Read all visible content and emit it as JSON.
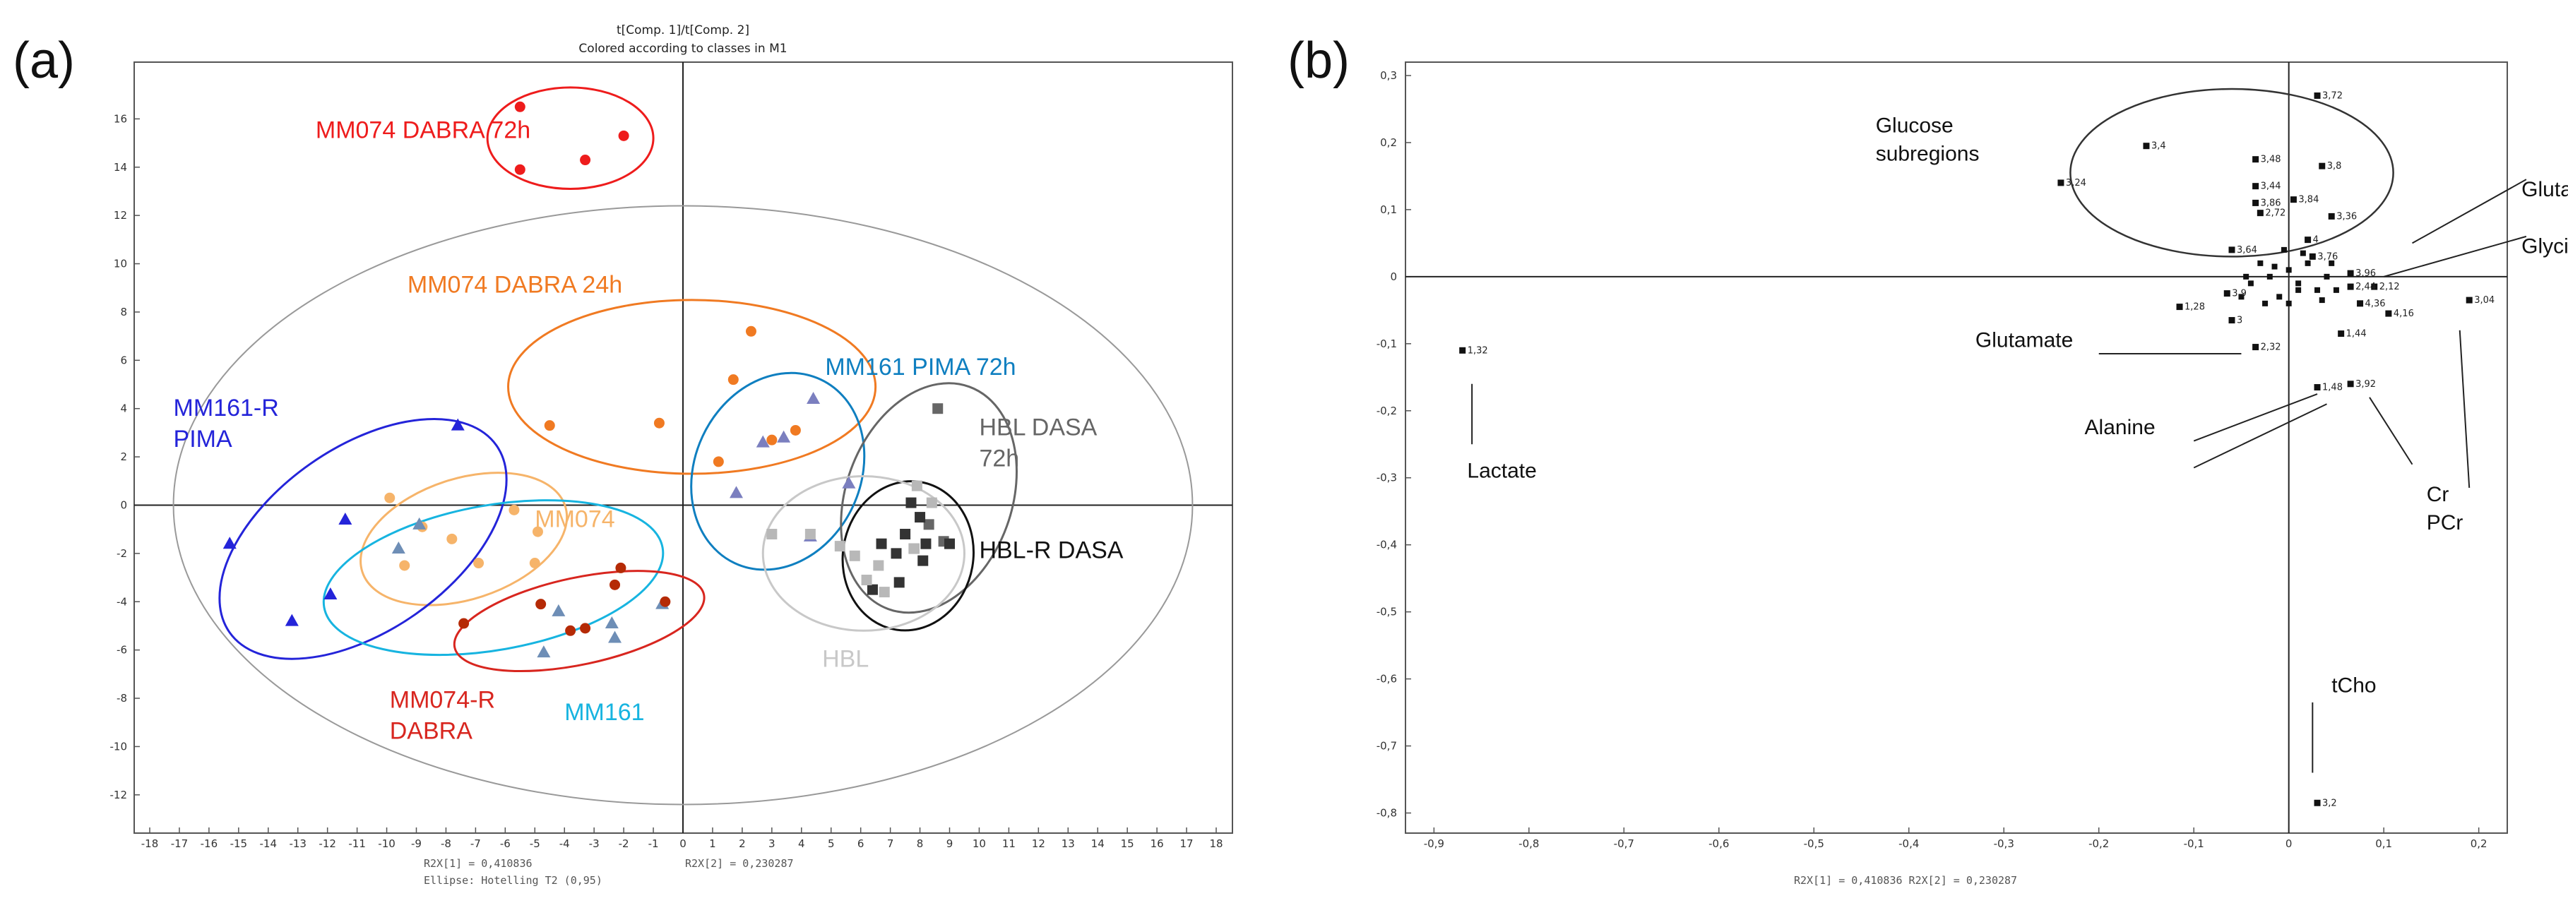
{
  "panels": {
    "a_label": "(a)",
    "b_label": "(b)"
  },
  "chart_data": [
    {
      "type": "scatter",
      "panel": "(a)",
      "title": "t[Comp. 1]/t[Comp. 2]",
      "subtitle": "Colored according to classes in M1",
      "xlim": [
        -18,
        18
      ],
      "ylim": [
        -13,
        18
      ],
      "xticks": [
        -18,
        -17,
        -16,
        -15,
        -14,
        -13,
        -12,
        -11,
        -10,
        -9,
        -8,
        -7,
        -6,
        -5,
        -4,
        -3,
        -2,
        -1,
        0,
        1,
        2,
        3,
        4,
        5,
        6,
        7,
        8,
        9,
        10,
        11,
        12,
        13,
        14,
        15,
        16,
        17,
        18
      ],
      "yticks": [
        -12,
        -10,
        -8,
        -6,
        -4,
        -2,
        0,
        2,
        4,
        6,
        8,
        10,
        12,
        14,
        16
      ],
      "footer_x": "R2X[1] = 0,410836",
      "footer_y": "R2X[2] = 0,230287",
      "footer_ellipse": "Ellipse: Hotelling T2 (0,95)",
      "hotelling": {
        "cx": 0,
        "cy": 0,
        "rx": 17.2,
        "ry": 12.4,
        "color": "#999999"
      },
      "groups": [
        {
          "name": "MM074 DABRA 72h",
          "label": "MM074 DABRA 72h",
          "color": "#ee1c1c",
          "marker": "circle",
          "ellipse": {
            "cx": -3.8,
            "cy": 15.2,
            "rx": 2.8,
            "ry": 2.1,
            "rot": 0
          },
          "label_at": [
            -12.4,
            15.2
          ],
          "points": [
            [
              -5.5,
              16.5
            ],
            [
              -2.0,
              15.3
            ],
            [
              -3.3,
              14.3
            ],
            [
              -5.5,
              13.9
            ]
          ]
        },
        {
          "name": "MM074 DABRA 24h",
          "label": "MM074 DABRA 24h",
          "color": "#f07a22",
          "marker": "circle",
          "ellipse": {
            "cx": 0.3,
            "cy": 4.9,
            "rx": 6.2,
            "ry": 3.6,
            "rot": 0
          },
          "label_at": [
            -9.3,
            8.8
          ],
          "points": [
            [
              -4.5,
              3.3
            ],
            [
              -0.8,
              3.4
            ],
            [
              1.2,
              1.8
            ],
            [
              2.3,
              7.2
            ],
            [
              3.8,
              3.1
            ],
            [
              1.7,
              5.2
            ],
            [
              3.0,
              2.7
            ]
          ]
        },
        {
          "name": "MM161 PIMA 72h",
          "label": "MM161 PIMA 72h",
          "color": "#0f7fc0",
          "marker": "triangle",
          "ellipse": {
            "cx": 3.2,
            "cy": 1.4,
            "rx": 2.8,
            "ry": 4.2,
            "rot": 25
          },
          "label_at": [
            4.8,
            5.4
          ],
          "points": [
            [
              1.8,
              0.5
            ],
            [
              2.7,
              2.6
            ],
            [
              3.4,
              2.8
            ],
            [
              4.4,
              4.4
            ],
            [
              4.3,
              -1.3
            ],
            [
              5.6,
              0.9
            ]
          ],
          "point_color": "#7b7fbf"
        },
        {
          "name": "HBL DASA 72h",
          "label": "HBL DASA",
          "label2": "72h",
          "color": "#666666",
          "marker": "square",
          "ellipse": {
            "cx": 8.3,
            "cy": 0.3,
            "rx": 2.8,
            "ry": 4.9,
            "rot": 20
          },
          "label_at": [
            10.0,
            2.9
          ],
          "points": [
            [
              8.6,
              4.0
            ],
            [
              8.8,
              -1.5
            ],
            [
              8.3,
              -0.8
            ]
          ]
        },
        {
          "name": "HBL-R DASA",
          "label": "HBL-R DASA",
          "color": "#111111",
          "marker": "square",
          "ellipse": {
            "cx": 7.6,
            "cy": -2.1,
            "rx": 2.2,
            "ry": 3.1,
            "rot": 10
          },
          "label_at": [
            10.0,
            -2.2
          ],
          "points": [
            [
              6.7,
              -1.6
            ],
            [
              7.2,
              -2.0
            ],
            [
              7.5,
              -1.2
            ],
            [
              7.8,
              -1.8
            ],
            [
              8.2,
              -1.6
            ],
            [
              8.0,
              -0.5
            ],
            [
              7.3,
              -3.2
            ],
            [
              6.4,
              -3.5
            ],
            [
              7.7,
              0.1
            ],
            [
              8.1,
              -2.3
            ],
            [
              9.0,
              -1.6
            ]
          ],
          "point_color": "#333333"
        },
        {
          "name": "HBL",
          "label": "HBL",
          "color": "#c8c8c8",
          "marker": "square",
          "ellipse": {
            "cx": 6.1,
            "cy": -2.0,
            "rx": 3.4,
            "ry": 3.2,
            "rot": 0
          },
          "label_at": [
            4.7,
            -6.7
          ],
          "points": [
            [
              3.0,
              -1.2
            ],
            [
              4.3,
              -1.2
            ],
            [
              5.3,
              -1.7
            ],
            [
              5.8,
              -2.1
            ],
            [
              6.6,
              -2.5
            ],
            [
              7.8,
              -1.8
            ],
            [
              8.4,
              0.1
            ],
            [
              6.8,
              -3.6
            ],
            [
              7.9,
              0.8
            ],
            [
              6.2,
              -3.1
            ]
          ],
          "point_color": "#b8b8b8"
        },
        {
          "name": "MM074",
          "label": "MM074",
          "color": "#f6b46a",
          "marker": "circle",
          "ellipse": {
            "cx": -7.4,
            "cy": -1.4,
            "rx": 3.6,
            "ry": 2.5,
            "rot": -18
          },
          "label_at": [
            -5.0,
            -0.9
          ],
          "points": [
            [
              -9.9,
              0.3
            ],
            [
              -8.8,
              -0.9
            ],
            [
              -7.8,
              -1.4
            ],
            [
              -5.7,
              -0.2
            ],
            [
              -4.9,
              -1.1
            ],
            [
              -6.9,
              -2.4
            ],
            [
              -5.0,
              -2.4
            ],
            [
              -9.4,
              -2.5
            ]
          ]
        },
        {
          "name": "MM161-R PIMA",
          "label": "MM161-R",
          "label2": "PIMA",
          "color": "#2424d9",
          "marker": "triangle",
          "ellipse": {
            "cx": -10.8,
            "cy": -1.4,
            "rx": 5.5,
            "ry": 3.8,
            "rot": -35
          },
          "label_at": [
            -17.2,
            3.7
          ],
          "points": [
            [
              -15.3,
              -1.6
            ],
            [
              -13.2,
              -4.8
            ],
            [
              -11.9,
              -3.7
            ],
            [
              -11.4,
              -0.6
            ],
            [
              -7.6,
              3.3
            ]
          ]
        },
        {
          "name": "MM161",
          "label": "MM161",
          "color": "#17b4e0",
          "marker": "triangle",
          "ellipse": {
            "cx": -6.4,
            "cy": -3.0,
            "rx": 5.8,
            "ry": 3.0,
            "rot": -10
          },
          "label_at": [
            -4.0,
            -8.9
          ],
          "points": [
            [
              -9.6,
              -1.8
            ],
            [
              -8.9,
              -0.8
            ],
            [
              -4.2,
              -4.4
            ],
            [
              -4.7,
              -6.1
            ],
            [
              -2.4,
              -4.9
            ],
            [
              -2.3,
              -5.5
            ],
            [
              -0.7,
              -4.1
            ]
          ],
          "point_color": "#6e8eb6"
        },
        {
          "name": "MM074-R DABRA",
          "label": "MM074-R",
          "label2": "DABRA",
          "color": "#d8261f",
          "marker": "circle",
          "ellipse": {
            "cx": -3.5,
            "cy": -4.8,
            "rx": 4.3,
            "ry": 1.8,
            "rot": -12
          },
          "label_at": [
            -9.9,
            -8.4
          ],
          "points": [
            [
              -7.4,
              -4.9
            ],
            [
              -4.8,
              -4.1
            ],
            [
              -3.8,
              -5.2
            ],
            [
              -3.3,
              -5.1
            ],
            [
              -2.3,
              -3.3
            ],
            [
              -2.1,
              -2.6
            ],
            [
              -0.6,
              -4.0
            ]
          ],
          "point_color": "#b52a06"
        }
      ]
    },
    {
      "type": "scatter",
      "panel": "(b)",
      "xlim": [
        -0.93,
        0.23
      ],
      "ylim": [
        -0.83,
        0.32
      ],
      "xticks": [
        "-0,9",
        "-0,8",
        "-0,7",
        "-0,6",
        "-0,5",
        "-0,4",
        "-0,3",
        "-0,2",
        "-0,1",
        "0",
        "0,1",
        "0,2"
      ],
      "xtick_values": [
        -0.9,
        -0.8,
        -0.7,
        -0.6,
        -0.5,
        -0.4,
        -0.3,
        -0.2,
        -0.1,
        0,
        0.1,
        0.2
      ],
      "yticks": [
        "0,3",
        "0,2",
        "0,1",
        "0",
        "-0,1",
        "-0,2",
        "-0,3",
        "-0,4",
        "-0,5",
        "-0,6",
        "-0,7",
        "-0,8"
      ],
      "ytick_values": [
        0.3,
        0.2,
        0.1,
        0,
        -0.1,
        -0.2,
        -0.3,
        -0.4,
        -0.5,
        -0.6,
        -0.7,
        -0.8
      ],
      "footer": "R2X[1] = 0,410836   R2X[2] = 0,230287",
      "points": [
        {
          "label": "1,32",
          "x": -0.87,
          "y": -0.11
        },
        {
          "label": "3,72",
          "x": 0.03,
          "y": 0.27
        },
        {
          "label": "3,4",
          "x": -0.15,
          "y": 0.195
        },
        {
          "label": "3,24",
          "x": -0.24,
          "y": 0.14
        },
        {
          "label": "3,48",
          "x": -0.035,
          "y": 0.175
        },
        {
          "label": "3,8",
          "x": 0.035,
          "y": 0.165
        },
        {
          "label": "3,44",
          "x": -0.035,
          "y": 0.135
        },
        {
          "label": "3,84",
          "x": 0.005,
          "y": 0.115
        },
        {
          "label": "3,86",
          "x": -0.035,
          "y": 0.11
        },
        {
          "label": "2,72",
          "x": -0.03,
          "y": 0.095
        },
        {
          "label": "3,36",
          "x": 0.045,
          "y": 0.09
        },
        {
          "label": "4",
          "x": 0.02,
          "y": 0.055
        },
        {
          "label": "3,64",
          "x": -0.06,
          "y": 0.04
        },
        {
          "label": "3,76",
          "x": 0.025,
          "y": 0.03
        },
        {
          "label": "3,96",
          "x": 0.065,
          "y": 0.005
        },
        {
          "label": "2,12",
          "x": 0.09,
          "y": -0.015
        },
        {
          "label": "2,44",
          "x": 0.065,
          "y": -0.015
        },
        {
          "label": "3,9",
          "x": -0.065,
          "y": -0.025
        },
        {
          "label": "4,36",
          "x": 0.075,
          "y": -0.04
        },
        {
          "label": "1,28",
          "x": -0.115,
          "y": -0.045
        },
        {
          "label": "3",
          "x": -0.06,
          "y": -0.065
        },
        {
          "label": "4,16",
          "x": 0.105,
          "y": -0.055
        },
        {
          "label": "3,04",
          "x": 0.19,
          "y": -0.035
        },
        {
          "label": "1,44",
          "x": 0.055,
          "y": -0.085
        },
        {
          "label": "2,32",
          "x": -0.035,
          "y": -0.105
        },
        {
          "label": "1,48",
          "x": 0.03,
          "y": -0.165
        },
        {
          "label": "3,92",
          "x": 0.065,
          "y": -0.16
        },
        {
          "label": "3,2",
          "x": 0.03,
          "y": -0.785
        }
      ],
      "cluster_points": [
        [
          0.0,
          0.01
        ],
        [
          0.01,
          -0.01
        ],
        [
          -0.02,
          0.0
        ],
        [
          0.03,
          -0.02
        ],
        [
          -0.04,
          -0.01
        ],
        [
          0.02,
          0.02
        ],
        [
          -0.01,
          -0.03
        ],
        [
          0.04,
          0.0
        ],
        [
          -0.03,
          0.02
        ],
        [
          0.0,
          -0.04
        ],
        [
          0.05,
          -0.02
        ],
        [
          -0.05,
          -0.03
        ],
        [
          0.015,
          0.035
        ],
        [
          -0.015,
          0.015
        ],
        [
          0.035,
          -0.035
        ],
        [
          -0.025,
          -0.04
        ],
        [
          0.045,
          0.02
        ],
        [
          -0.045,
          0.0
        ],
        [
          0.01,
          -0.02
        ],
        [
          -0.005,
          0.04
        ]
      ],
      "glucose_ellipse": {
        "cx": -0.06,
        "cy": 0.155,
        "rx": 0.17,
        "ry": 0.125
      },
      "annotations": [
        {
          "text": "Glucose",
          "text2": "subregions",
          "at": [
            -0.435,
            0.215
          ]
        },
        {
          "text": "Glutamine",
          "at": [
            0.245,
            0.12
          ]
        },
        {
          "text": "Glycine",
          "at": [
            0.245,
            0.035
          ]
        },
        {
          "text": "Glutamate",
          "at": [
            -0.33,
            -0.105
          ]
        },
        {
          "text": "Alanine",
          "at": [
            -0.215,
            -0.235
          ]
        },
        {
          "text": "Lactate",
          "at": [
            -0.865,
            -0.3
          ]
        },
        {
          "text": "Cr",
          "text2": "PCr",
          "at": [
            0.145,
            -0.335
          ]
        },
        {
          "text": "tCho",
          "at": [
            0.045,
            -0.62
          ]
        }
      ]
    }
  ]
}
